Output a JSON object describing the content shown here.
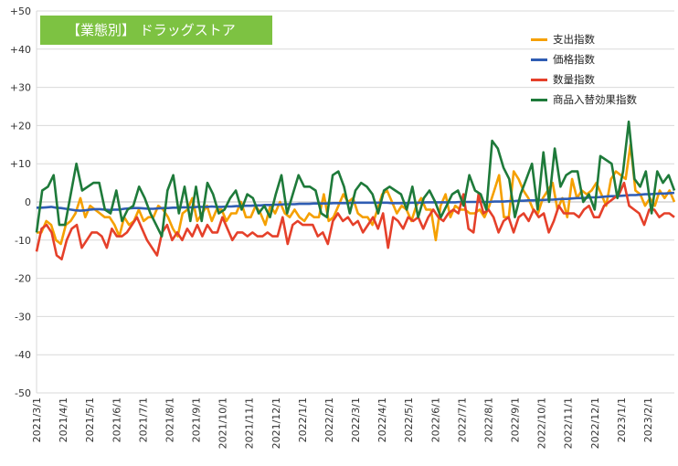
{
  "title_label": "【業態別】 ドラッグストア",
  "chart_data": {
    "type": "line",
    "title": "【業態別】 ドラッグストア",
    "ylim": [
      -50,
      50
    ],
    "yticks": [
      "+50",
      "+40",
      "+30",
      "+20",
      "+10",
      "0",
      "-10",
      "-20",
      "-30",
      "-40",
      "-50"
    ],
    "xticks": [
      "2021/3/1",
      "2021/4/1",
      "2021/5/1",
      "2021/6/1",
      "2021/7/1",
      "2021/8/1",
      "2021/9/1",
      "2021/10/1",
      "2021/11/1",
      "2021/12/1",
      "2022/1/1",
      "2022/2/1",
      "2022/3/1",
      "2022/4/1",
      "2022/5/1",
      "2022/6/1",
      "2022/7/1",
      "2022/8/1",
      "2022/9/1",
      "2022/10/1",
      "2022/11/1",
      "2022/12/1",
      "2023/1/1",
      "2023/2/1"
    ],
    "grid": true,
    "legend_position": "top-right",
    "series": [
      {
        "name": "支出指数",
        "color": "#F5A000",
        "values": [
          -8,
          -8,
          -5,
          -6,
          -10,
          -11,
          -6,
          -5,
          -3,
          1,
          -4,
          -1,
          -2,
          -3,
          -4,
          -4,
          -6,
          -9,
          -4,
          -6,
          -5,
          -2,
          -5,
          -4,
          -4,
          -1,
          -2,
          -4,
          -7,
          -9,
          -3,
          -2,
          1,
          -5,
          -3,
          -1,
          -5,
          -2,
          -2,
          -5,
          -3,
          -3,
          0,
          -4,
          -4,
          -1,
          -3,
          -6,
          -1,
          -3,
          0,
          -3,
          -4,
          -2,
          -4,
          -5,
          -3,
          -4,
          -4,
          2,
          -5,
          -4,
          -1,
          2,
          0,
          1,
          -3,
          -4,
          -4,
          -6,
          -2,
          2,
          3,
          0,
          -3,
          -1,
          -2,
          -5,
          -1,
          1,
          -2,
          -2,
          -10,
          -1,
          2,
          -4,
          -1,
          -2,
          -2,
          -3,
          -3,
          -2,
          -4,
          -1,
          3,
          7,
          -4,
          -4,
          8,
          6,
          3,
          1,
          -2,
          -3,
          1,
          3,
          5,
          -2,
          1,
          -4,
          6,
          1,
          3,
          2,
          3,
          5,
          2,
          -1,
          6,
          8,
          7,
          6,
          15,
          3,
          2,
          -1,
          1,
          -1,
          3,
          1,
          3,
          0
        ],
        "label_color": "#333333"
      },
      {
        "name": "価格指数",
        "color": "#2F5DB3",
        "values": [
          -1.5,
          -1.5,
          -1.4,
          -1.3,
          -1.5,
          -1.6,
          -1.8,
          -2,
          -2.2,
          -2.3,
          -2.2,
          -2,
          -1.9,
          -1.9,
          -2,
          -2.1,
          -2,
          -2,
          -1.8,
          -1.7,
          -1.6,
          -1.6,
          -1.7,
          -1.8,
          -1.8,
          -1.7,
          -1.6,
          -1.6,
          -1.5,
          -1.5,
          -1.4,
          -1.4,
          -1.4,
          -1.3,
          -1.3,
          -1.3,
          -1.2,
          -1.3,
          -1.3,
          -1.2,
          -1.2,
          -1.1,
          -1.1,
          -1,
          -1,
          -0.9,
          -0.9,
          -0.8,
          -0.8,
          -0.7,
          -0.7,
          -0.6,
          -0.6,
          -0.6,
          -0.5,
          -0.5,
          -0.5,
          -0.4,
          -0.4,
          -0.4,
          -0.4,
          -0.3,
          -0.3,
          -0.3,
          -0.3,
          -0.2,
          -0.2,
          -0.2,
          -0.2,
          -0.2,
          -0.2,
          -0.2,
          -0.2,
          -0.3,
          -0.3,
          -0.3,
          -0.3,
          -0.2,
          -0.2,
          -0.2,
          -0.1,
          -0.1,
          -0.1,
          -0.1,
          -0.1,
          -0.1,
          -0.1,
          0,
          0,
          0,
          0,
          0,
          0,
          0,
          0.1,
          0.1,
          0.1,
          0.2,
          0.2,
          0.3,
          0.3,
          0.4,
          0.4,
          0.5,
          0.5,
          0.6,
          0.6,
          0.7,
          0.8,
          0.8,
          0.9,
          1,
          1,
          1.1,
          1.2,
          1.2,
          1.3,
          1.4,
          1.5,
          1.5,
          1.6,
          1.7,
          1.8,
          1.8,
          1.9,
          2,
          2,
          2.1,
          2.2,
          2.2,
          2.3,
          2.4
        ],
        "label_color": "#333333"
      },
      {
        "name": "数量指数",
        "color": "#E5402A",
        "values": [
          -13,
          -7,
          -6,
          -8,
          -14,
          -15,
          -10,
          -7,
          -6,
          -12,
          -10,
          -8,
          -8,
          -9,
          -12,
          -7,
          -9,
          -9,
          -8,
          -6,
          -4,
          -7,
          -10,
          -12,
          -14,
          -8,
          -6,
          -10,
          -8,
          -10,
          -7,
          -9,
          -6,
          -9,
          -6,
          -8,
          -8,
          -4,
          -7,
          -10,
          -8,
          -8,
          -9,
          -8,
          -9,
          -9,
          -8,
          -9,
          -9,
          -4,
          -11,
          -6,
          -5,
          -6,
          -6,
          -6,
          -9,
          -8,
          -11,
          -5,
          -3,
          -5,
          -4,
          -6,
          -5,
          -8,
          -6,
          -4,
          -7,
          -3,
          -12,
          -4,
          -5,
          -7,
          -4,
          -5,
          -4,
          -7,
          -4,
          -2,
          -4,
          -5,
          -3,
          -2,
          -3,
          2,
          -7,
          -8,
          2,
          -3,
          -2,
          -4,
          -8,
          -5,
          -4,
          -8,
          -4,
          -3,
          -5,
          -2,
          -4,
          -3,
          -8,
          -5,
          -1,
          -3,
          -3,
          -3,
          -4,
          -2,
          -1,
          -4,
          -4,
          -1,
          0,
          1,
          2,
          5,
          -1,
          -2,
          -3,
          -6,
          -2,
          -2,
          -4,
          -3,
          -3,
          -4
        ],
        "label_color": "#333333"
      },
      {
        "name": "商品入替効果指数",
        "color": "#1E7A3A",
        "values": [
          -8,
          3,
          4,
          7,
          -6,
          -6,
          2,
          10,
          3,
          4,
          5,
          5,
          -2,
          -3,
          3,
          -5,
          -2,
          -1,
          4,
          1,
          -3,
          -6,
          -9,
          3,
          7,
          -3,
          4,
          -5,
          4,
          -5,
          5,
          2,
          -3,
          -2,
          1,
          3,
          -2,
          2,
          1,
          -3,
          -1,
          -4,
          2,
          7,
          -3,
          2,
          7,
          4,
          4,
          3,
          -3,
          -4,
          7,
          8,
          4,
          -3,
          3,
          5,
          4,
          2,
          -3,
          3,
          4,
          3,
          2,
          -2,
          4,
          -4,
          1,
          3,
          0,
          -4,
          -1,
          2,
          3,
          -1,
          7,
          3,
          2,
          -2,
          16,
          14,
          9,
          6,
          -4,
          2,
          6,
          10,
          -2,
          13,
          0,
          14,
          4,
          7,
          8,
          8,
          0,
          2,
          -2,
          12,
          11,
          10,
          1,
          8,
          21,
          6,
          4,
          8,
          -3,
          8,
          5,
          7,
          3
        ],
        "label_color": "#333333"
      }
    ]
  },
  "legend": {
    "items": [
      "支出指数",
      "価格指数",
      "数量指数",
      "商品入替効果指数"
    ]
  }
}
